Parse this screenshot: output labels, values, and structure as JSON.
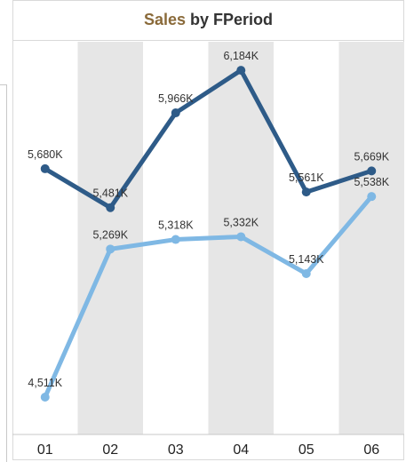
{
  "chart_data": {
    "type": "line",
    "title_accent": "Sales",
    "title_rest": "by FPeriod",
    "categories": [
      "01",
      "02",
      "03",
      "04",
      "05",
      "06"
    ],
    "series": [
      {
        "values": [
          5680,
          5481,
          5966,
          6184,
          5561,
          5669
        ],
        "labels": [
          "5,680K",
          "5,481K",
          "5,966K",
          "6,184K",
          "5,561K",
          "5,669K"
        ],
        "color": "#2e5b88"
      },
      {
        "values": [
          4511,
          5269,
          5318,
          5332,
          5143,
          5538
        ],
        "labels": [
          "4,511K",
          "5,269K",
          "5,318K",
          "5,332K",
          "5,143K",
          "5,538K"
        ],
        "color": "#7fb8e4"
      }
    ],
    "ylim": [
      4320,
      6330
    ],
    "band_color": "#e6e6e6",
    "grid": false
  }
}
